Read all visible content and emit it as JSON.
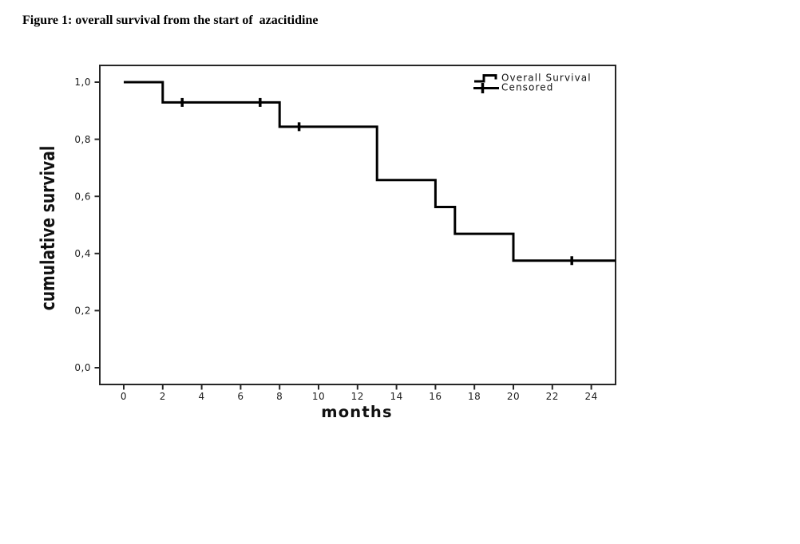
{
  "title": "Figure 1: overall survival from the start of  azacitidine",
  "chart_data": {
    "type": "line",
    "subtype": "kaplan-meier-step",
    "title": "",
    "xlabel": "months",
    "ylabel": "cumulative survival",
    "xlim": [
      -1.25,
      25.25
    ],
    "ylim": [
      -0.06,
      1.06
    ],
    "x_ticks": [
      0,
      2,
      4,
      6,
      8,
      10,
      12,
      14,
      16,
      18,
      20,
      22,
      24
    ],
    "y_ticks": [
      0.0,
      0.2,
      0.4,
      0.6,
      0.8,
      1.0
    ],
    "y_tick_labels": [
      "0,0",
      "0,2",
      "0,4",
      "0,6",
      "0,8",
      "1,0"
    ],
    "decimal_separator": ",",
    "grid": false,
    "frame_color": "#262626",
    "line_color": "#000000",
    "series": [
      {
        "name": "Overall Survival",
        "type": "step",
        "color": "#000000",
        "points": [
          {
            "t": 0,
            "s": 1.0
          },
          {
            "t": 2,
            "s": 0.929
          },
          {
            "t": 8,
            "s": 0.844
          },
          {
            "t": 13,
            "s": 0.657
          },
          {
            "t": 16,
            "s": 0.563
          },
          {
            "t": 17,
            "s": 0.469
          },
          {
            "t": 20,
            "s": 0.375
          }
        ],
        "end_t": 25.25
      }
    ],
    "censored": [
      {
        "t": 3,
        "s": 0.929
      },
      {
        "t": 7,
        "s": 0.929
      },
      {
        "t": 9,
        "s": 0.844
      },
      {
        "t": 23,
        "s": 0.375
      }
    ],
    "legend": {
      "position": "top-right-inside",
      "items": [
        {
          "label": "Overall Survival",
          "symbol": "step-line"
        },
        {
          "label": "Censored",
          "symbol": "plus-marker"
        }
      ]
    }
  }
}
